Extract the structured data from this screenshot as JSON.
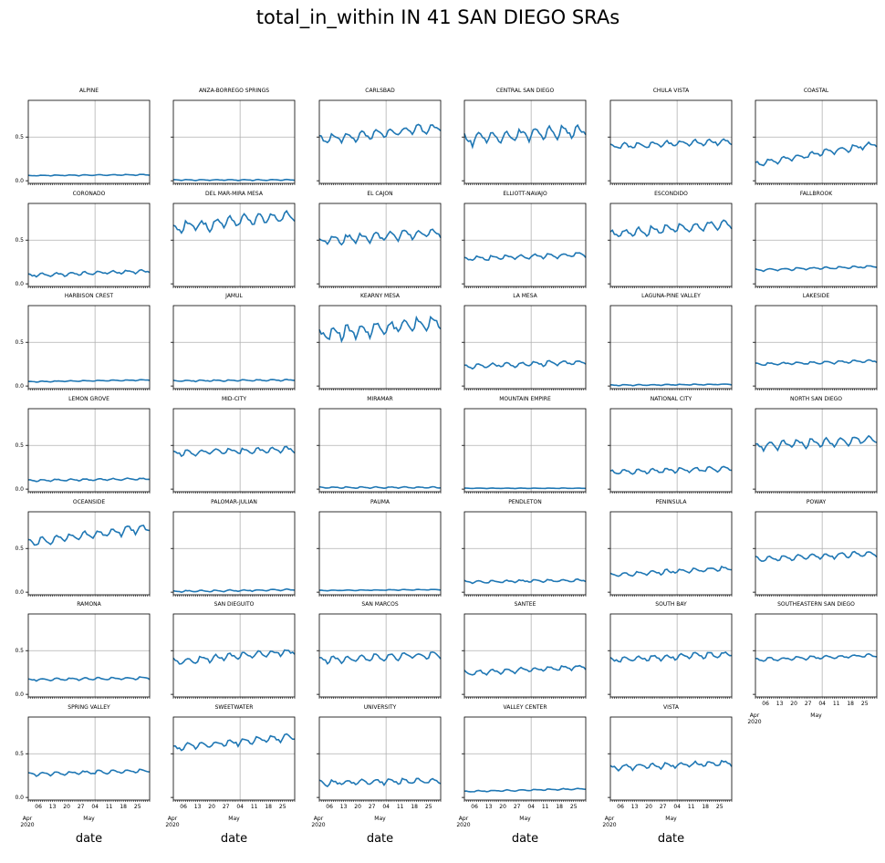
{
  "suptitle": "total_in_within IN 41 SAN DIEGO SRAs",
  "chart_data": {
    "type": "line",
    "title": "total_in_within IN 41 SAN DIEGO SRAs",
    "xlabel": "date",
    "x_range": [
      "2020-04-01",
      "2020-05-31"
    ],
    "ylim": [
      -0.03,
      0.92
    ],
    "yticks": [
      0.0,
      0.5
    ],
    "ytick_labels": [
      "0.0",
      "0.5"
    ],
    "xtick_major_labels": [
      "06",
      "13",
      "20",
      "27",
      "04",
      "11",
      "18",
      "25"
    ],
    "xtick_month_labels": [
      {
        "label": "Apr",
        "sub": "2020"
      },
      {
        "label": "May",
        "sub": ""
      }
    ],
    "grid": true,
    "line_color": "#1f77b4",
    "series_note": "each panel: daily values Apr 1 – May 31, 2020 (61 points)",
    "panels": [
      {
        "name": "ALPINE",
        "start": 0.06,
        "end": 0.07,
        "noise": 0.004
      },
      {
        "name": "ANZA-BORREGO SPRINGS",
        "start": 0.01,
        "end": 0.01,
        "noise": 0.004
      },
      {
        "name": "CARLSBAD",
        "start": 0.48,
        "end": 0.62,
        "noise": 0.04
      },
      {
        "name": "CENTRAL SAN DIEGO",
        "start": 0.48,
        "end": 0.6,
        "noise": 0.05
      },
      {
        "name": "CHULA VISTA",
        "start": 0.4,
        "end": 0.46,
        "noise": 0.025
      },
      {
        "name": "COASTAL",
        "start": 0.2,
        "end": 0.43,
        "noise": 0.025
      },
      {
        "name": "CORONADO",
        "start": 0.1,
        "end": 0.15,
        "noise": 0.015
      },
      {
        "name": "DEL MAR-MIRA MESA",
        "start": 0.65,
        "end": 0.8,
        "noise": 0.05
      },
      {
        "name": "EL CAJON",
        "start": 0.5,
        "end": 0.6,
        "noise": 0.04
      },
      {
        "name": "ELLIOTT-NAVAJO",
        "start": 0.29,
        "end": 0.34,
        "noise": 0.02
      },
      {
        "name": "ESCONDIDO",
        "start": 0.58,
        "end": 0.7,
        "noise": 0.04
      },
      {
        "name": "FALLBROOK",
        "start": 0.16,
        "end": 0.2,
        "noise": 0.01
      },
      {
        "name": "HARBISON CREST",
        "start": 0.05,
        "end": 0.07,
        "noise": 0.004
      },
      {
        "name": "JAMUL",
        "start": 0.06,
        "end": 0.07,
        "noise": 0.006
      },
      {
        "name": "KEARNY MESA",
        "start": 0.6,
        "end": 0.75,
        "noise": 0.06
      },
      {
        "name": "LA MESA",
        "start": 0.23,
        "end": 0.28,
        "noise": 0.02
      },
      {
        "name": "LAGUNA-PINE VALLEY",
        "start": 0.01,
        "end": 0.02,
        "noise": 0.004
      },
      {
        "name": "LAKESIDE",
        "start": 0.25,
        "end": 0.29,
        "noise": 0.012
      },
      {
        "name": "LEMON GROVE",
        "start": 0.1,
        "end": 0.12,
        "noise": 0.008
      },
      {
        "name": "MID-CITY",
        "start": 0.42,
        "end": 0.46,
        "noise": 0.025
      },
      {
        "name": "MIRAMAR",
        "start": 0.02,
        "end": 0.02,
        "noise": 0.006
      },
      {
        "name": "MOUNTAIN EMPIRE",
        "start": 0.01,
        "end": 0.01,
        "noise": 0.002
      },
      {
        "name": "NATIONAL CITY",
        "start": 0.2,
        "end": 0.24,
        "noise": 0.02
      },
      {
        "name": "NORTH SAN DIEGO",
        "start": 0.5,
        "end": 0.58,
        "noise": 0.035
      },
      {
        "name": "OCEANSIDE",
        "start": 0.58,
        "end": 0.75,
        "noise": 0.04
      },
      {
        "name": "PALOMAR-JULIAN",
        "start": 0.01,
        "end": 0.03,
        "noise": 0.007
      },
      {
        "name": "PAUMA",
        "start": 0.02,
        "end": 0.03,
        "noise": 0.003
      },
      {
        "name": "PENDLETON",
        "start": 0.12,
        "end": 0.14,
        "noise": 0.012
      },
      {
        "name": "PENINSULA",
        "start": 0.2,
        "end": 0.28,
        "noise": 0.02
      },
      {
        "name": "POWAY",
        "start": 0.38,
        "end": 0.45,
        "noise": 0.025
      },
      {
        "name": "RAMONA",
        "start": 0.17,
        "end": 0.19,
        "noise": 0.01
      },
      {
        "name": "SAN DIEGUITO",
        "start": 0.38,
        "end": 0.5,
        "noise": 0.03
      },
      {
        "name": "SAN MARCOS",
        "start": 0.4,
        "end": 0.46,
        "noise": 0.03
      },
      {
        "name": "SANTEE",
        "start": 0.25,
        "end": 0.32,
        "noise": 0.02
      },
      {
        "name": "SOUTH BAY",
        "start": 0.4,
        "end": 0.47,
        "noise": 0.025
      },
      {
        "name": "SOUTHEASTERN SAN DIEGO",
        "start": 0.4,
        "end": 0.45,
        "noise": 0.015
      },
      {
        "name": "SPRING VALLEY",
        "start": 0.27,
        "end": 0.31,
        "noise": 0.015
      },
      {
        "name": "SWEETWATER",
        "start": 0.58,
        "end": 0.7,
        "noise": 0.03
      },
      {
        "name": "UNIVERSITY",
        "start": 0.17,
        "end": 0.2,
        "noise": 0.025
      },
      {
        "name": "VALLEY CENTER",
        "start": 0.07,
        "end": 0.1,
        "noise": 0.006
      },
      {
        "name": "VISTA",
        "start": 0.35,
        "end": 0.4,
        "noise": 0.025
      }
    ]
  }
}
